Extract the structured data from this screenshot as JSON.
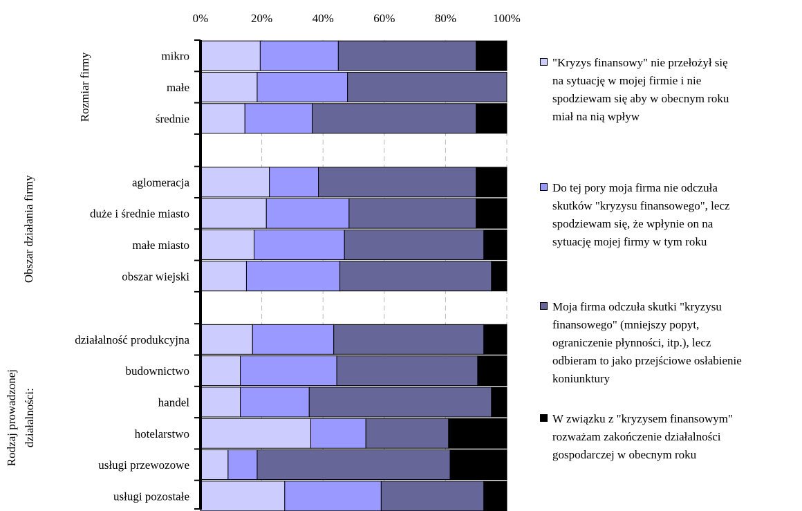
{
  "chart_data": {
    "type": "bar",
    "orientation": "horizontal",
    "stacked": "percent",
    "x_ticks": [
      "0%",
      "20%",
      "40%",
      "60%",
      "80%",
      "100%"
    ],
    "xlim": [
      0,
      100
    ],
    "grid": "vertical dashed",
    "legend_position": "right",
    "groups": [
      {
        "label": "Rozmiar firmy",
        "categories": [
          "mikro",
          "małe",
          "średnie"
        ]
      },
      {
        "label": "Obszar działania firmy",
        "categories": [
          "aglomeracja",
          "duże i średnie miasto",
          "małe miasto",
          "obszar wiejski"
        ]
      },
      {
        "label_lines": [
          "Rodzaj prowadzonej",
          "działalności:"
        ],
        "categories": [
          "działalność produkcyjna",
          "budownictwo",
          "handel ",
          "hotelarstwo",
          "usługi przewozowe",
          "usługi pozostałe"
        ]
      }
    ],
    "series": [
      {
        "name": "\"Kryzys finansowy\" nie przełożył się na sytuację w mojej firmie i nie spodziewam się aby w obecnym roku miał na nią wpływ",
        "name_lines": [
          "\"Kryzys finansowy\" nie przełożył się",
          "na sytuację w mojej firmie i nie",
          "spodziewam się aby w obecnym roku",
          "miał na nią wpływ"
        ],
        "color": "#ccccff",
        "values": [
          19.5,
          18.5,
          14.5,
          22.5,
          21.5,
          17.5,
          15,
          17,
          13,
          13,
          36,
          9,
          27.5
        ]
      },
      {
        "name": "Do tej pory moja firma nie odczuła skutków \"kryzysu finansowego\", lecz spodziewam się, że wpłynie on na sytuację mojej firmy w tym roku",
        "name_lines": [
          "Do tej pory moja firma nie odczuła",
          "skutków \"kryzysu finansowego\", lecz",
          "spodziewam się, że wpłynie on na",
          "sytuację mojej firmy w tym roku"
        ],
        "color": "#9999ff",
        "values": [
          25.5,
          29.5,
          22,
          16,
          27,
          29.5,
          30.5,
          26.5,
          31.5,
          22.5,
          18,
          9.5,
          31.5
        ]
      },
      {
        "name": "Moja firma odczuła skutki \"kryzysu finansowego\" (mniejszy popyt, ograniczenie płynności, itp.), lecz odbieram to jako przejściowe osłabienie koniunktury",
        "name_lines": [
          "Moja firma odczuła skutki \"kryzysu",
          "finansowego\" (mniejszy popyt,",
          "ograniczenie płynności, itp.), lecz",
          "odbieram to jako przejściowe osłabienie",
          "koniunktury"
        ],
        "color": "#666699",
        "values": [
          45,
          52,
          53.5,
          51.5,
          41.5,
          45.5,
          49.5,
          49,
          46,
          59.5,
          27,
          63,
          33.5
        ]
      },
      {
        "name": "W związku z \"kryzysem finansowym\" rozważam zakończenie działalności gospodarczej w obecnym roku",
        "name_lines": [
          "W związku z \"kryzysem finansowym\"",
          "rozważam zakończenie działalności",
          "gospodarczej w obecnym roku"
        ],
        "color": "#000000",
        "values": [
          10,
          0,
          10,
          10,
          10,
          7.5,
          5,
          7.5,
          9.5,
          5,
          19,
          18.5,
          7.5
        ]
      }
    ]
  }
}
